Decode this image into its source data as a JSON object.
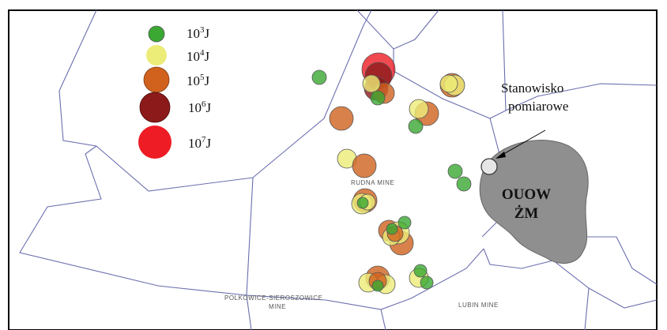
{
  "legend": {
    "items": [
      {
        "base": "10",
        "exp": "3",
        "unit": "J",
        "color": "#3aa832"
      },
      {
        "base": "10",
        "exp": "4",
        "unit": "J",
        "color": "#ecec78"
      },
      {
        "base": "10",
        "exp": "5",
        "unit": "J",
        "color": "#d0621e"
      },
      {
        "base": "10",
        "exp": "6",
        "unit": "J",
        "color": "#8c1a1a"
      },
      {
        "base": "10",
        "exp": "7",
        "unit": "J",
        "color": "#ee1c24"
      }
    ]
  },
  "station": {
    "line1": "Stanowisko",
    "line2": "pomiarowe"
  },
  "area": {
    "line1": "OUOW",
    "line2": "ŻM",
    "color": "#8f8f8f"
  },
  "mines": {
    "rudna": "RUDNA MINE",
    "polkowice_line1": "POLKOWICE-SIEROSZOWICE",
    "polkowice_line2": "MINE",
    "lubin": "LUBIN MINE"
  },
  "colors": {
    "boundary": "#6b6fae",
    "frame": "#000000"
  }
}
